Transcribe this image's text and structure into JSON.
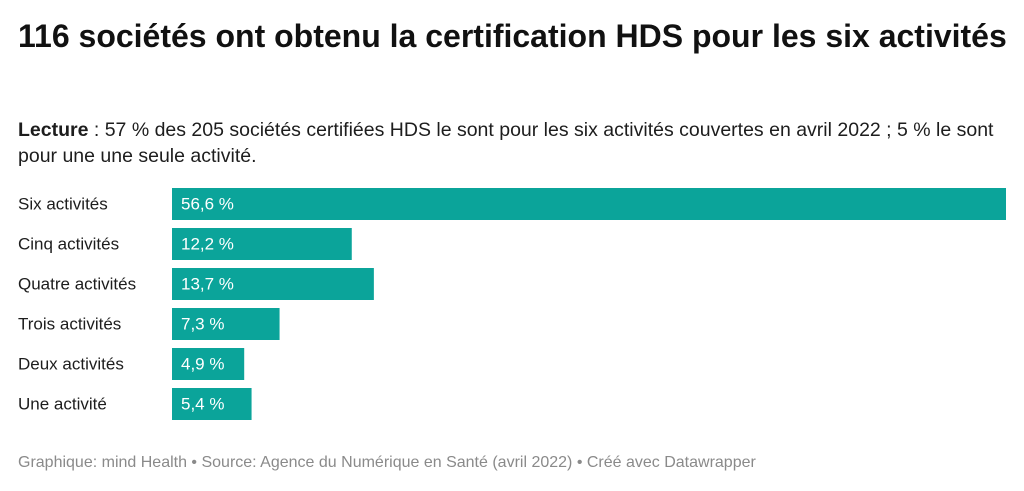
{
  "title": "116 sociétés ont obtenu la certification HDS pour les six activités",
  "description": {
    "label": "Lecture",
    "text": " : 57 % des 205 sociétés certifiées HDS le sont pour les six activités couvertes en avril 2022 ; 5 % le sont pour une une seule activité."
  },
  "chart_data": {
    "type": "bar",
    "orientation": "horizontal",
    "categories": [
      "Six activités",
      "Cinq activités",
      "Quatre activités",
      "Trois activités",
      "Deux activités",
      "Une activité"
    ],
    "values": [
      56.6,
      12.2,
      13.7,
      7.3,
      4.9,
      5.4
    ],
    "value_labels": [
      "56,6 %",
      "12,2 %",
      "13,7 %",
      "7,3 %",
      "4,9 %",
      "5,4 %"
    ],
    "unit": "%",
    "xlim": [
      0,
      56.6
    ],
    "grid": false,
    "legend": "none",
    "bar_color": "#0ba49a",
    "label_color": "#ffffff"
  },
  "footer": "Graphique: mind Health • Source: Agence du Numérique en Santé (avril 2022) • Créé avec Datawrapper"
}
